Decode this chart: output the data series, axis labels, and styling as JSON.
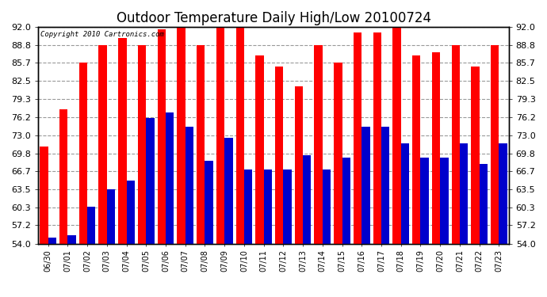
{
  "title": "Outdoor Temperature Daily High/Low 20100724",
  "copyright": "Copyright 2010 Cartronics.com",
  "ylim": [
    54.0,
    92.0
  ],
  "yticks": [
    54.0,
    57.2,
    60.3,
    63.5,
    66.7,
    69.8,
    73.0,
    76.2,
    79.3,
    82.5,
    85.7,
    88.8,
    92.0
  ],
  "dates": [
    "06/30",
    "07/01",
    "07/02",
    "07/03",
    "07/04",
    "07/05",
    "07/06",
    "07/07",
    "07/08",
    "07/09",
    "07/10",
    "07/11",
    "07/12",
    "07/13",
    "07/14",
    "07/15",
    "07/16",
    "07/17",
    "07/18",
    "07/19",
    "07/20",
    "07/21",
    "07/22",
    "07/23"
  ],
  "highs": [
    71.0,
    77.5,
    85.7,
    88.8,
    90.0,
    88.8,
    91.5,
    92.0,
    88.8,
    92.0,
    92.0,
    87.0,
    85.0,
    81.5,
    88.8,
    85.7,
    91.0,
    91.0,
    92.0,
    87.0,
    87.5,
    88.8,
    85.0,
    88.8
  ],
  "lows": [
    55.0,
    55.5,
    60.5,
    63.5,
    65.0,
    76.0,
    77.0,
    74.5,
    68.5,
    72.5,
    67.0,
    67.0,
    67.0,
    69.5,
    67.0,
    69.0,
    74.5,
    74.5,
    71.5,
    69.0,
    69.0,
    71.5,
    68.0,
    71.5
  ],
  "high_color": "#ff0000",
  "low_color": "#0000cc",
  "background_color": "#ffffff",
  "grid_color": "#999999",
  "title_fontsize": 12,
  "tick_fontsize": 8,
  "bar_width": 0.42,
  "fig_width": 6.9,
  "fig_height": 3.75,
  "dpi": 100
}
